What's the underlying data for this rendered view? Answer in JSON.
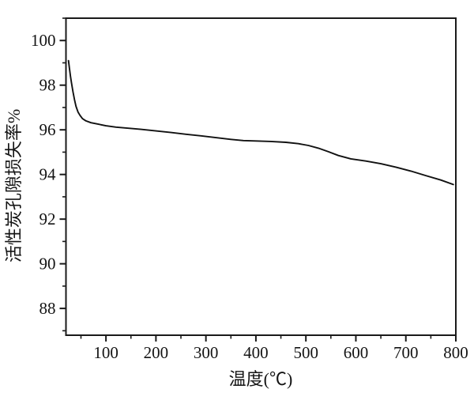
{
  "figure": {
    "background": "#ffffff",
    "axis_color": "#1a1a1a",
    "text_color": "#141414"
  },
  "chart_data": {
    "type": "line",
    "title": "",
    "xlabel": "温度(℃)",
    "ylabel": "活性炭孔隙损失率%",
    "xlim": [
      20,
      800
    ],
    "ylim": [
      86.8,
      101.0
    ],
    "x_major_ticks": [
      100,
      200,
      300,
      400,
      500,
      600,
      700,
      800
    ],
    "x_minor_tick_step": 50,
    "y_major_ticks": [
      88,
      90,
      92,
      94,
      96,
      98,
      100
    ],
    "y_minor_tick_step": 1,
    "grid": false,
    "legend": null,
    "line_color": "#111111",
    "series": [
      {
        "name": "活性炭孔隙损失率",
        "x": [
          25,
          27,
          29,
          31,
          34,
          37,
          40,
          44,
          48,
          53,
          60,
          70,
          85,
          100,
          120,
          145,
          170,
          200,
          230,
          260,
          290,
          320,
          350,
          375,
          400,
          430,
          460,
          485,
          505,
          525,
          545,
          565,
          590,
          620,
          650,
          680,
          710,
          740,
          770,
          795
        ],
        "y": [
          99.1,
          98.75,
          98.4,
          98.1,
          97.7,
          97.35,
          97.05,
          96.8,
          96.65,
          96.5,
          96.4,
          96.32,
          96.25,
          96.18,
          96.12,
          96.07,
          96.02,
          95.95,
          95.88,
          95.8,
          95.73,
          95.65,
          95.57,
          95.52,
          95.5,
          95.48,
          95.44,
          95.38,
          95.3,
          95.18,
          95.02,
          94.85,
          94.7,
          94.6,
          94.48,
          94.33,
          94.15,
          93.95,
          93.75,
          93.55
        ]
      }
    ]
  }
}
